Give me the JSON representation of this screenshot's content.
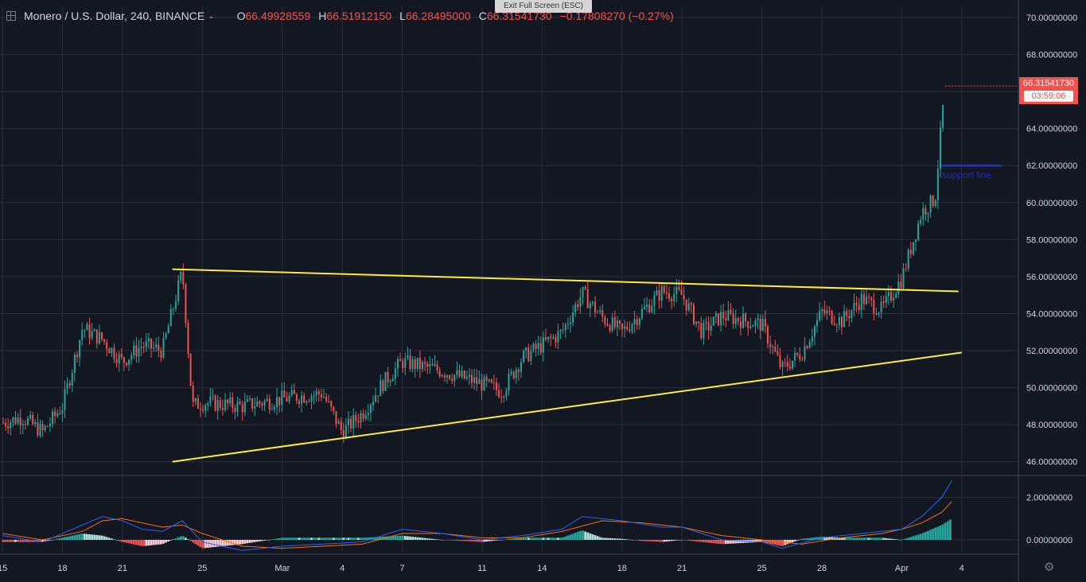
{
  "header": {
    "symbol": "Monero / U.S. Dollar, 240, BINANCE",
    "open_label": "O",
    "open_value": "66.49928559",
    "high_label": "H",
    "high_value": "66.51912150",
    "low_label": "L",
    "low_value": "66.28495000",
    "close_label": "C",
    "close_value": "66.31541730",
    "change": "−0.17808270 (−0.27%)"
  },
  "exit_full_screen": "Exit Full Screen (ESC)",
  "last_price": {
    "value": "66.31541730",
    "countdown": "03:59:06"
  },
  "annotations": {
    "support_label": "support line"
  },
  "colors": {
    "background": "#131722",
    "grid": "#2a2e39",
    "up": "#26a69a",
    "down": "#ef5350",
    "trendline": "#ffeb3b",
    "support": "#1e2fb5",
    "macd": "#2962ff",
    "signal": "#ff6d00",
    "axis_text": "#d1d4dc"
  },
  "icons": {
    "settings": "gear-icon",
    "add": "plus-square-icon",
    "dropdown": "chevron-down-icon"
  },
  "chart_data": [
    {
      "type": "candlestick",
      "title": "Monero / U.S. Dollar, 240, BINANCE",
      "ylim": [
        45.3,
        70.6
      ],
      "y_ticks": [
        "70.00000000",
        "68.00000000",
        "66.00000000",
        "64.00000000",
        "62.00000000",
        "60.00000000",
        "58.00000000",
        "56.00000000",
        "54.00000000",
        "52.00000000",
        "50.00000000",
        "48.00000000",
        "46.00000000"
      ],
      "y_tick_values": [
        70,
        68,
        66,
        64,
        62,
        60,
        58,
        56,
        54,
        52,
        50,
        48,
        46
      ],
      "x_ticks": [
        "15",
        "18",
        "21",
        "25",
        "Mar",
        "4",
        "7",
        "11",
        "14",
        "18",
        "21",
        "25",
        "28",
        "Apr",
        "4"
      ],
      "x_tick_dates": [
        "2019-02-15",
        "2019-02-18",
        "2019-02-21",
        "2019-02-25",
        "2019-03-01",
        "2019-03-04",
        "2019-03-07",
        "2019-03-11",
        "2019-03-14",
        "2019-03-18",
        "2019-03-21",
        "2019-03-25",
        "2019-03-28",
        "2019-04-01",
        "2019-04-04"
      ],
      "x_range": [
        "2019-02-14T21:00",
        "2019-04-06T20:00"
      ],
      "grid": true,
      "closes": [
        [
          "2019-02-15",
          48.1
        ],
        [
          "2019-02-16",
          48.4
        ],
        [
          "2019-02-17",
          47.6
        ],
        [
          "2019-02-18",
          49.0
        ],
        [
          "2019-02-19",
          53.2
        ],
        [
          "2019-02-20",
          52.6
        ],
        [
          "2019-02-21",
          51.4
        ],
        [
          "2019-02-22",
          52.3
        ],
        [
          "2019-02-23",
          52.0
        ],
        [
          "2019-02-24",
          56.3
        ],
        [
          "2019-02-24T12:00",
          49.0
        ],
        [
          "2019-02-25",
          49.2
        ],
        [
          "2019-02-27",
          49.0
        ],
        [
          "2019-03-01",
          49.4
        ],
        [
          "2019-03-03",
          49.7
        ],
        [
          "2019-03-04",
          47.6
        ],
        [
          "2019-03-05",
          48.6
        ],
        [
          "2019-03-06",
          50.2
        ],
        [
          "2019-03-07",
          51.4
        ],
        [
          "2019-03-09",
          50.9
        ],
        [
          "2019-03-11",
          50.2
        ],
        [
          "2019-03-12",
          49.8
        ],
        [
          "2019-03-13",
          51.6
        ],
        [
          "2019-03-15",
          53.0
        ],
        [
          "2019-03-16",
          55.1
        ],
        [
          "2019-03-17",
          53.8
        ],
        [
          "2019-03-18",
          53.0
        ],
        [
          "2019-03-20",
          55.2
        ],
        [
          "2019-03-21",
          55.0
        ],
        [
          "2019-03-22",
          53.0
        ],
        [
          "2019-03-23",
          53.9
        ],
        [
          "2019-03-25",
          53.4
        ],
        [
          "2019-03-26",
          51.0
        ],
        [
          "2019-03-27",
          51.9
        ],
        [
          "2019-03-28",
          54.1
        ],
        [
          "2019-03-29",
          53.6
        ],
        [
          "2019-03-30",
          54.8
        ],
        [
          "2019-03-31",
          54.2
        ],
        [
          "2019-04-01",
          55.9
        ],
        [
          "2019-04-02",
          59.5
        ],
        [
          "2019-04-02T16:00",
          60.2
        ],
        [
          "2019-04-03",
          64.5
        ],
        [
          "2019-04-03T04:00",
          66.3
        ]
      ],
      "lines": [
        {
          "name": "",
          "points": [
            [
              "2019-02-23T12:00",
              56.4
            ],
            [
              "2019-04-03T20:00",
              55.2
            ]
          ]
        },
        {
          "name": "",
          "points": [
            [
              "2019-02-23T12:00",
              46.0
            ],
            [
              "2019-04-04",
              51.9
            ]
          ]
        },
        {
          "name": "support line",
          "points": [
            [
              "2019-04-03",
              62.0
            ],
            [
              "2019-04-06",
              62.0
            ]
          ]
        }
      ]
    },
    {
      "type": "macd",
      "ylim": [
        -0.6,
        3.0
      ],
      "y_ticks": [
        "2.00000000",
        "0.00000000"
      ],
      "y_tick_values": [
        2,
        0
      ],
      "macd": [
        [
          "2019-02-15",
          0.2
        ],
        [
          "2019-02-17",
          -0.1
        ],
        [
          "2019-02-19",
          0.7
        ],
        [
          "2019-02-20",
          1.1
        ],
        [
          "2019-02-21",
          0.9
        ],
        [
          "2019-02-22",
          0.5
        ],
        [
          "2019-02-23",
          0.4
        ],
        [
          "2019-02-24",
          0.9
        ],
        [
          "2019-02-25",
          -0.1
        ],
        [
          "2019-02-27",
          -0.5
        ],
        [
          "2019-03-01",
          -0.3
        ],
        [
          "2019-03-03",
          -0.2
        ],
        [
          "2019-03-05",
          -0.1
        ],
        [
          "2019-03-07",
          0.5
        ],
        [
          "2019-03-09",
          0.3
        ],
        [
          "2019-03-11",
          0.0
        ],
        [
          "2019-03-13",
          0.2
        ],
        [
          "2019-03-15",
          0.5
        ],
        [
          "2019-03-16",
          1.1
        ],
        [
          "2019-03-18",
          0.9
        ],
        [
          "2019-03-20",
          0.6
        ],
        [
          "2019-03-21",
          0.6
        ],
        [
          "2019-03-23",
          0.0
        ],
        [
          "2019-03-25",
          -0.1
        ],
        [
          "2019-03-26",
          -0.4
        ],
        [
          "2019-03-28",
          0.1
        ],
        [
          "2019-03-30",
          0.3
        ],
        [
          "2019-04-01",
          0.5
        ],
        [
          "2019-04-02",
          1.1
        ],
        [
          "2019-04-03",
          2.0
        ],
        [
          "2019-04-03T12:00",
          2.8
        ]
      ],
      "signal": [
        [
          "2019-02-15",
          0.3
        ],
        [
          "2019-02-17",
          0.0
        ],
        [
          "2019-02-19",
          0.4
        ],
        [
          "2019-02-20",
          0.9
        ],
        [
          "2019-02-21",
          1.0
        ],
        [
          "2019-02-23",
          0.6
        ],
        [
          "2019-02-24",
          0.7
        ],
        [
          "2019-02-25",
          0.3
        ],
        [
          "2019-02-27",
          -0.3
        ],
        [
          "2019-03-01",
          -0.4
        ],
        [
          "2019-03-03",
          -0.3
        ],
        [
          "2019-03-05",
          -0.2
        ],
        [
          "2019-03-07",
          0.3
        ],
        [
          "2019-03-09",
          0.3
        ],
        [
          "2019-03-11",
          0.1
        ],
        [
          "2019-03-13",
          0.1
        ],
        [
          "2019-03-15",
          0.4
        ],
        [
          "2019-03-17",
          0.9
        ],
        [
          "2019-03-19",
          0.8
        ],
        [
          "2019-03-21",
          0.6
        ],
        [
          "2019-03-23",
          0.2
        ],
        [
          "2019-03-25",
          0.0
        ],
        [
          "2019-03-27",
          -0.2
        ],
        [
          "2019-03-29",
          0.1
        ],
        [
          "2019-03-31",
          0.3
        ],
        [
          "2019-04-01",
          0.5
        ],
        [
          "2019-04-02",
          0.8
        ],
        [
          "2019-04-03",
          1.3
        ],
        [
          "2019-04-03T12:00",
          1.8
        ]
      ]
    }
  ]
}
